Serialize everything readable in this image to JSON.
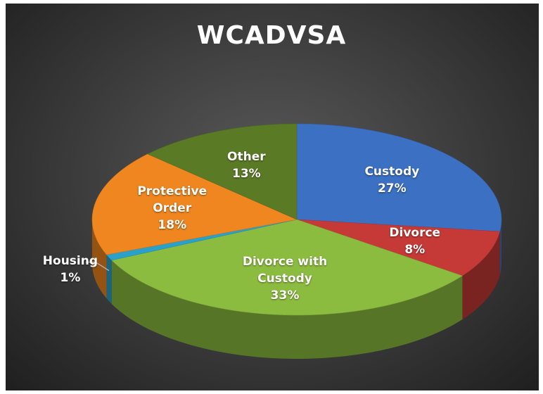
{
  "chart_data": {
    "type": "pie3d",
    "title": "WCADVSA",
    "categories": [
      "Custody",
      "Divorce",
      "Divorce with Custody",
      "Housing",
      "Protective Order",
      "Other"
    ],
    "values": [
      27,
      8,
      33,
      1,
      18,
      13
    ],
    "value_labels": [
      "27%",
      "8%",
      "33%",
      "1%",
      "18%",
      "13%"
    ],
    "colors": [
      "#3b70c2",
      "#c53a37",
      "#8cbc3f",
      "#2aa1c9",
      "#ef861f",
      "#5b7a26"
    ]
  }
}
